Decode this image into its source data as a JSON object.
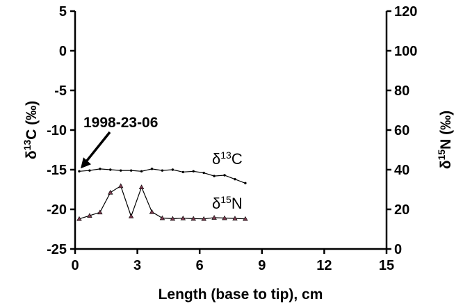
{
  "chart_data": {
    "type": "line",
    "xlabel": "Length (base to tip), cm",
    "ylabel_left": {
      "delta": "δ",
      "sup": "13",
      "rest": "C (‰)"
    },
    "ylabel_right": {
      "delta": "δ",
      "sup": "15",
      "rest": "N (‰)"
    },
    "xlim": [
      0,
      15
    ],
    "ylim_left": [
      -25,
      5
    ],
    "ylim_right": [
      0,
      120
    ],
    "x_ticks": [
      0,
      3,
      6,
      9,
      12,
      15
    ],
    "y_ticks_left": [
      5,
      0,
      -5,
      -10,
      -15,
      -20,
      -25
    ],
    "y_ticks_right": [
      120,
      100,
      80,
      60,
      40,
      20,
      0
    ],
    "grid": false,
    "legend": "none",
    "annotation": "1998-23-06",
    "series": [
      {
        "name": {
          "delta": "δ",
          "sup": "13",
          "rest": "C"
        },
        "axis": "left",
        "color": "#000000",
        "marker": "circle",
        "x": [
          0.2,
          0.7,
          1.2,
          1.7,
          2.2,
          2.7,
          3.2,
          3.7,
          4.2,
          4.7,
          5.2,
          5.7,
          6.2,
          6.7,
          7.2,
          7.7,
          8.2
        ],
        "y": [
          -15.2,
          -15.1,
          -14.9,
          -15.0,
          -15.1,
          -15.1,
          -15.2,
          -14.9,
          -15.1,
          -15.0,
          -15.3,
          -15.2,
          -15.4,
          -15.8,
          -15.7,
          -16.2,
          -16.7
        ]
      },
      {
        "name": {
          "delta": "δ",
          "sup": "15",
          "rest": "N"
        },
        "axis": "right",
        "color": "#000000",
        "marker_fill": "#7a3b4f",
        "marker": "triangle",
        "x": [
          0.2,
          0.7,
          1.2,
          1.7,
          2.2,
          2.7,
          3.2,
          3.7,
          4.2,
          4.7,
          5.2,
          5.7,
          6.2,
          6.7,
          7.2,
          7.7,
          8.2
        ],
        "y": [
          15.2,
          16.8,
          18.5,
          28.5,
          31.8,
          16.5,
          31.2,
          18.7,
          15.6,
          15.3,
          15.5,
          15.3,
          15.2,
          15.8,
          15.6,
          15.4,
          15.2
        ]
      }
    ]
  }
}
